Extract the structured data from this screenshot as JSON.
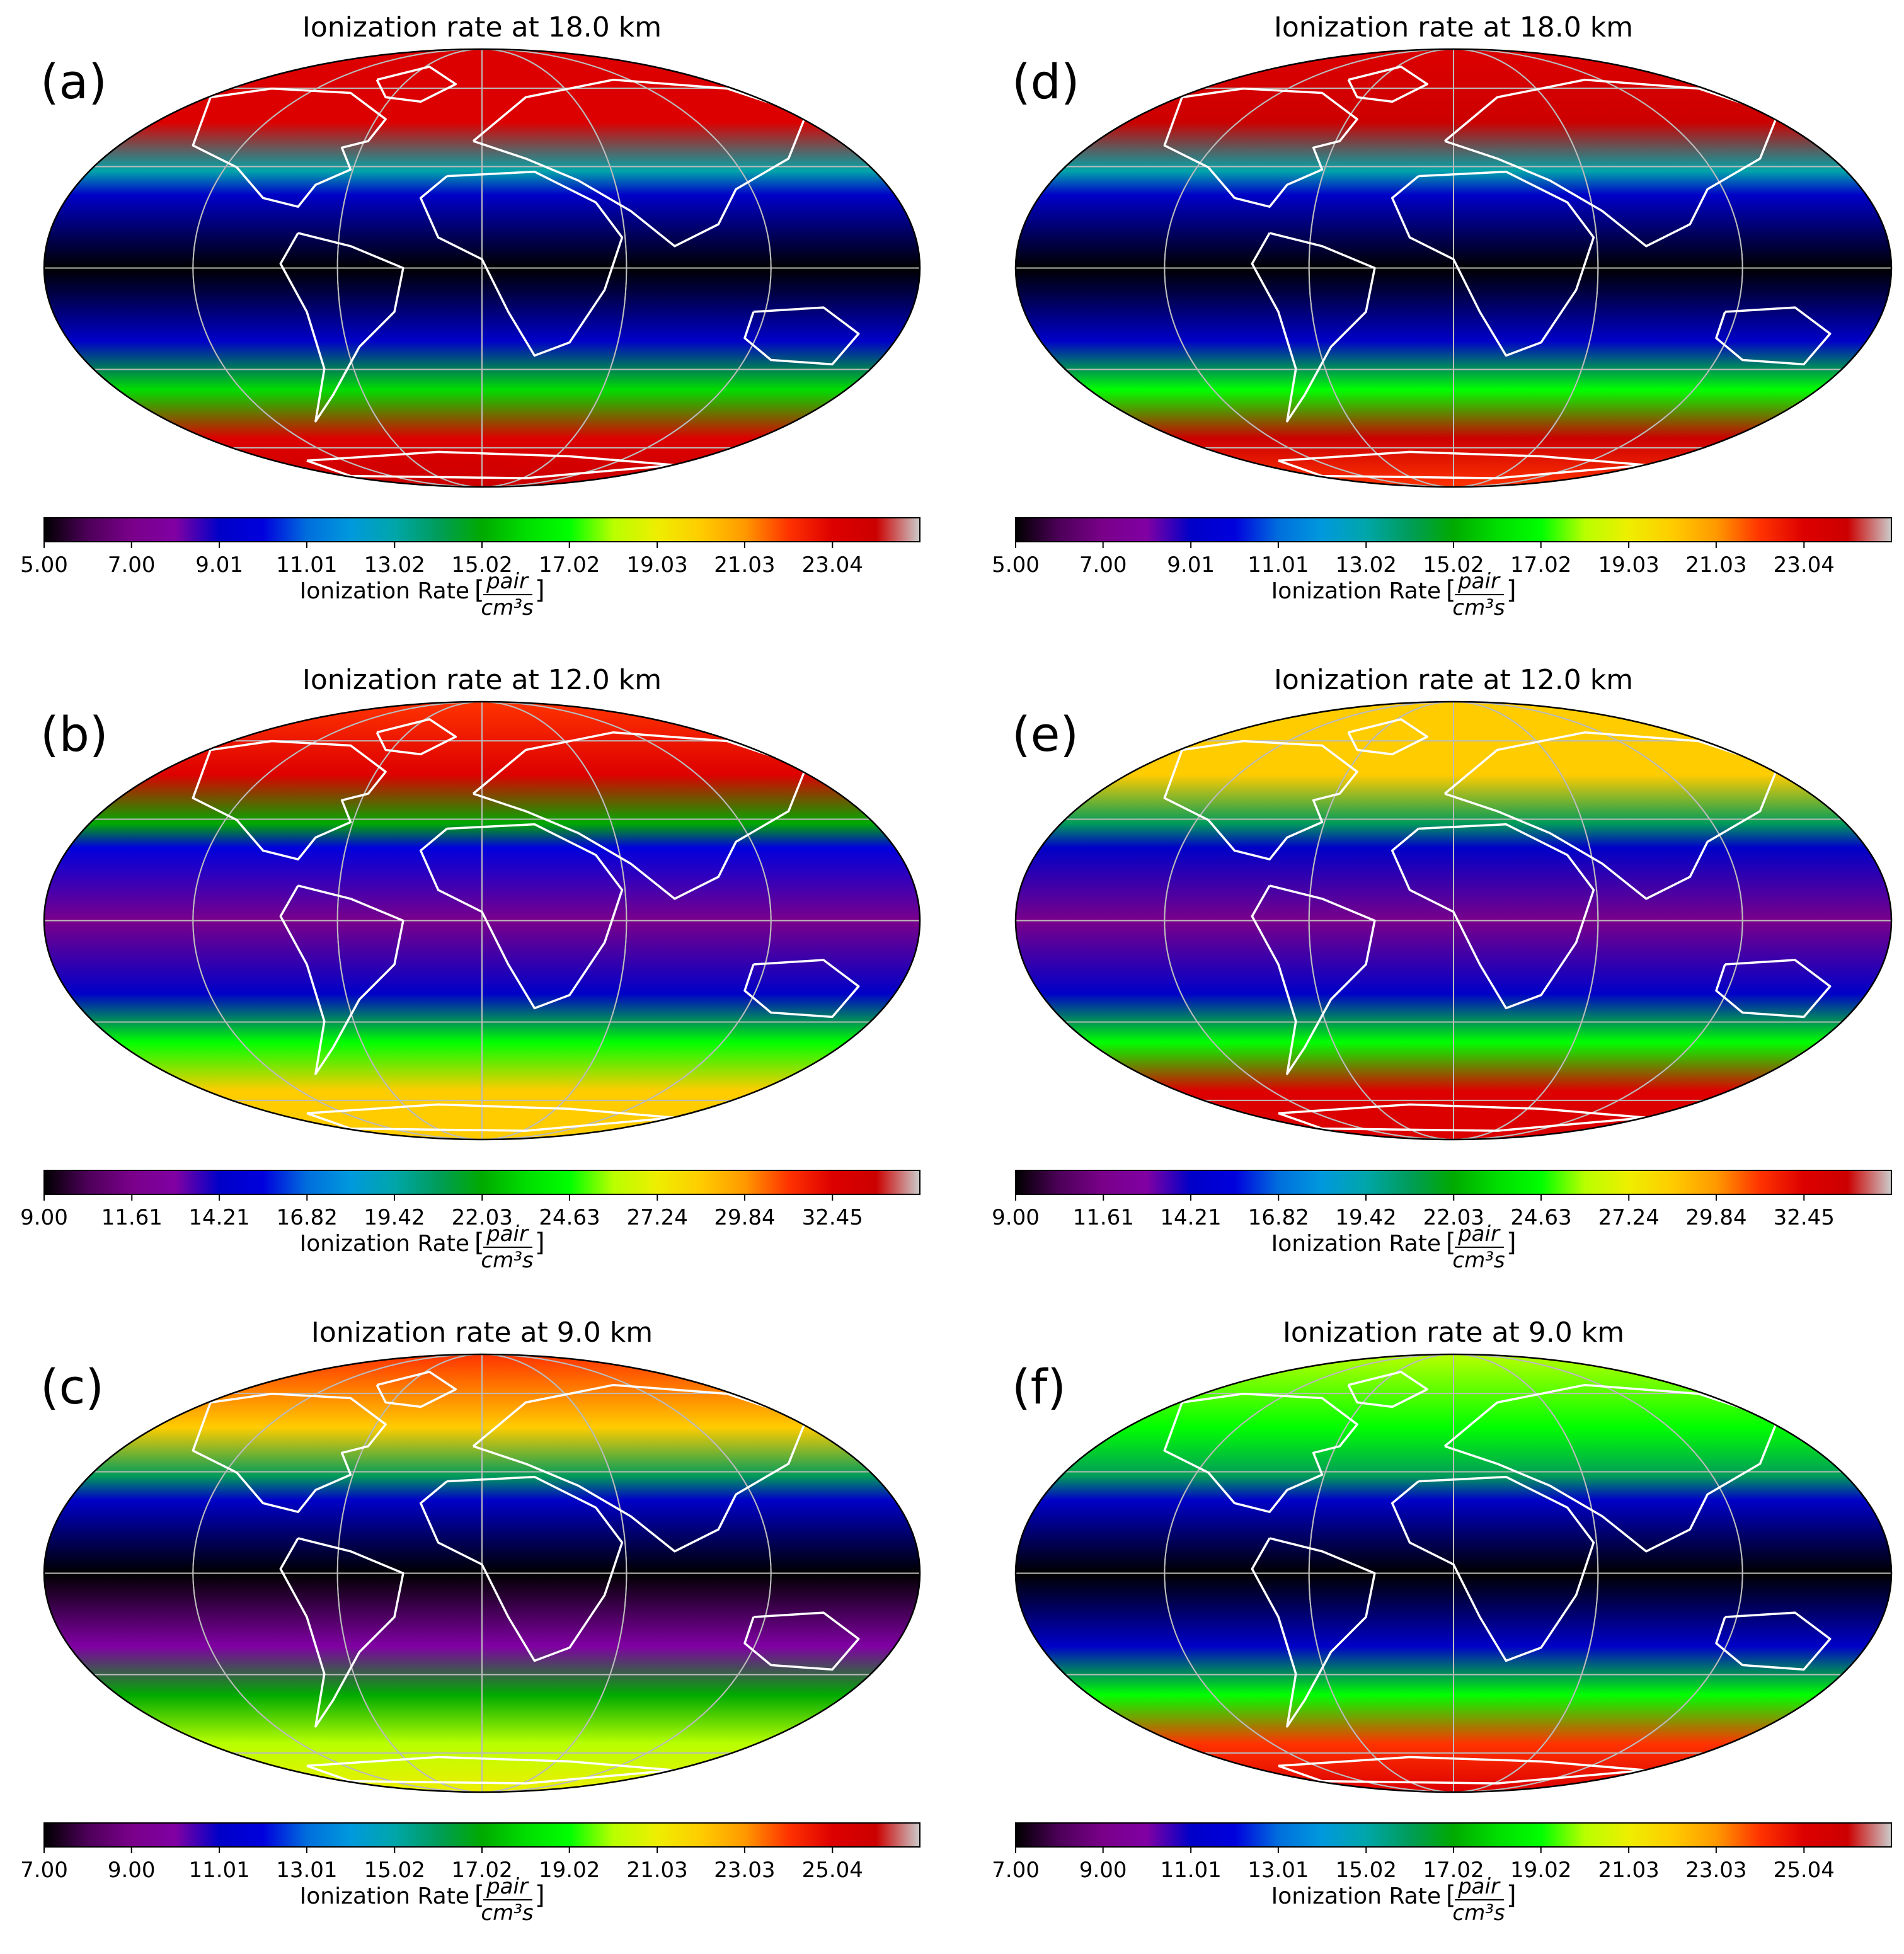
{
  "figure": {
    "colormap": "nipy_spectral",
    "units_numerator": "pair",
    "units_denominator": "cm³s"
  },
  "colormap_stops": [
    "#000000",
    "#4d0059",
    "#7a008a",
    "#8000a3",
    "#0000c8",
    "#0000dd",
    "#006edd",
    "#0099dd",
    "#00a6aa",
    "#009c5a",
    "#00aa00",
    "#00dd00",
    "#00ff00",
    "#b8ff00",
    "#eeee00",
    "#ffcc00",
    "#ff9900",
    "#ff3300",
    "#dd0000",
    "#cc0000",
    "#cccccc"
  ],
  "chart_data": [
    {
      "type": "heatmap",
      "projection": "mollweide",
      "panel": "(a)",
      "title": "Ionization rate at 18.0 km",
      "colorbar": {
        "label": "Ionization Rate",
        "range": [
          5.0,
          25.04
        ],
        "ticks": [
          "5.00",
          "7.00",
          "9.01",
          "11.01",
          "13.02",
          "15.02",
          "17.02",
          "19.03",
          "21.03",
          "23.04"
        ]
      },
      "value_profile": {
        "north_pole": 23.0,
        "lat_60N": 23.5,
        "lat_40N": 13.0,
        "lat_30N": 9.5,
        "equator_min": 5.2,
        "lat_30S": 9.0,
        "lat_50S": 16.0,
        "lat_70S": 23.5,
        "south_pole": 24.0
      }
    },
    {
      "type": "heatmap",
      "projection": "mollweide",
      "panel": "(b)",
      "title": "Ionization rate at 12.0 km",
      "colorbar": {
        "label": "Ionization Rate",
        "range": [
          9.0,
          35.05
        ],
        "ticks": [
          "9.00",
          "11.61",
          "14.21",
          "16.82",
          "19.42",
          "22.03",
          "24.63",
          "27.24",
          "29.84",
          "32.45"
        ]
      },
      "value_profile": {
        "north_pole": 31.5,
        "lat_60N": 32.0,
        "lat_40N": 22.0,
        "lat_30N": 15.0,
        "equator_min": 11.0,
        "lat_30S": 14.5,
        "lat_50S": 24.0,
        "lat_70S": 28.5,
        "south_pole": 28.0
      }
    },
    {
      "type": "heatmap",
      "projection": "mollweide",
      "panel": "(c)",
      "title": "Ionization rate at 9.0 km",
      "colorbar": {
        "label": "Ionization Rate",
        "range": [
          7.0,
          27.04
        ],
        "ticks": [
          "7.00",
          "9.00",
          "11.01",
          "13.01",
          "15.02",
          "17.02",
          "19.02",
          "21.03",
          "23.03",
          "25.04"
        ]
      },
      "value_profile": {
        "north_pole": 24.5,
        "lat_60N": 22.0,
        "lat_40N": 16.0,
        "lat_30N": 11.0,
        "equator_min": 7.5,
        "lat_30S": 10.5,
        "lat_50S": 17.0,
        "lat_70S": 20.5,
        "south_pole": 21.5
      }
    },
    {
      "type": "heatmap",
      "projection": "mollweide",
      "panel": "(d)",
      "title": "Ionization rate at 18.0 km",
      "colorbar": {
        "label": "Ionization Rate",
        "range": [
          5.0,
          25.04
        ],
        "ticks": [
          "5.00",
          "7.00",
          "9.01",
          "11.01",
          "13.02",
          "15.02",
          "17.02",
          "19.03",
          "21.03",
          "23.04"
        ]
      },
      "value_profile": {
        "north_pole": 23.5,
        "lat_60N": 24.0,
        "lat_40N": 13.5,
        "lat_30N": 9.5,
        "equator_min": 5.3,
        "lat_30S": 9.0,
        "lat_50S": 17.0,
        "lat_70S": 24.0,
        "south_pole": 22.5
      }
    },
    {
      "type": "heatmap",
      "projection": "mollweide",
      "panel": "(e)",
      "title": "Ionization rate at 12.0 km",
      "colorbar": {
        "label": "Ionization Rate",
        "range": [
          9.0,
          35.05
        ],
        "ticks": [
          "9.00",
          "11.61",
          "14.21",
          "16.82",
          "19.42",
          "22.03",
          "24.63",
          "27.24",
          "29.84",
          "32.45"
        ]
      },
      "value_profile": {
        "north_pole": 28.0,
        "lat_60N": 28.5,
        "lat_40N": 21.0,
        "lat_30N": 14.5,
        "equator_min": 11.0,
        "lat_30S": 14.0,
        "lat_50S": 25.0,
        "lat_70S": 32.5,
        "south_pole": 33.0
      }
    },
    {
      "type": "heatmap",
      "projection": "mollweide",
      "panel": "(f)",
      "title": "Ionization rate at 9.0 km",
      "colorbar": {
        "label": "Ionization Rate",
        "range": [
          7.0,
          27.04
        ],
        "ticks": [
          "7.00",
          "9.00",
          "11.01",
          "13.01",
          "15.02",
          "17.02",
          "19.02",
          "21.03",
          "23.03",
          "25.04"
        ]
      },
      "value_profile": {
        "north_pole": 20.0,
        "lat_60N": 19.0,
        "lat_40N": 16.0,
        "lat_30N": 11.0,
        "equator_min": 7.3,
        "lat_30S": 11.0,
        "lat_50S": 19.0,
        "lat_70S": 24.0,
        "south_pole": 25.5
      }
    }
  ]
}
